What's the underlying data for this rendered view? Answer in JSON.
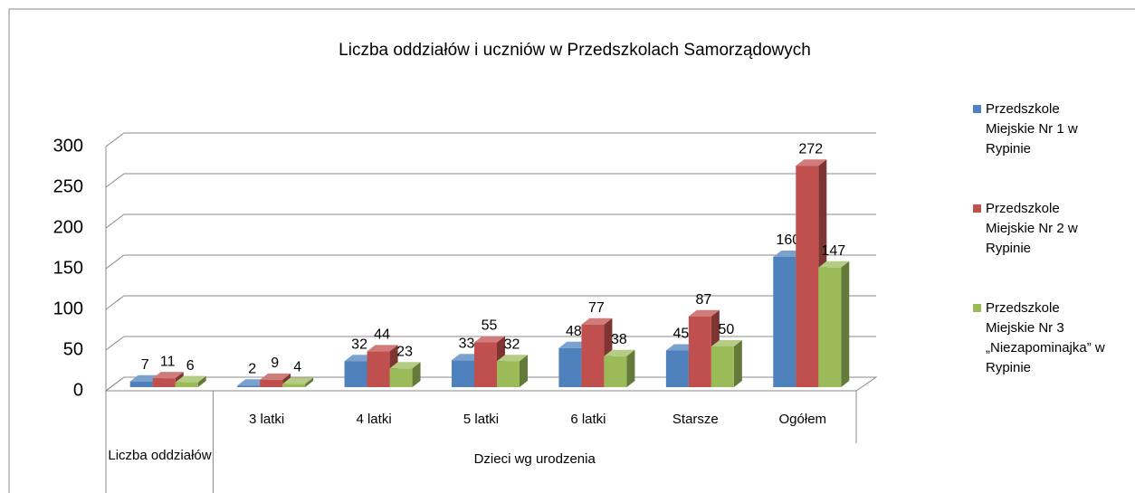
{
  "chart_data": {
    "type": "bar3d",
    "title": "Liczba oddziałów i uczniów w Przedszkolach Samorządowych",
    "categories": [
      "Liczba oddziałów",
      "3 latki",
      "4 latki",
      "5 latki",
      "6 latki",
      "Starsze",
      "Ogółem"
    ],
    "x_group_label": "Dzieci wg urodzenia",
    "series": [
      {
        "name": "Przedszkole Miejskie Nr 1 w Rypinie",
        "color": "#4f81bd",
        "values": [
          7,
          2,
          32,
          33,
          48,
          45,
          160
        ]
      },
      {
        "name": "Przedszkole Miejskie Nr 2  w Rypinie",
        "color": "#c0504d",
        "values": [
          11,
          9,
          44,
          55,
          77,
          87,
          272
        ]
      },
      {
        "name": "Przedszkole Miejskie Nr 3 „Niezapominajka” w Rypinie",
        "color": "#9bbb59",
        "values": [
          6,
          4,
          23,
          32,
          38,
          50,
          147
        ]
      }
    ],
    "ylim": [
      0,
      300
    ],
    "yticks": [
      0,
      50,
      100,
      150,
      200,
      250,
      300
    ],
    "grid": true,
    "legend": "right"
  }
}
